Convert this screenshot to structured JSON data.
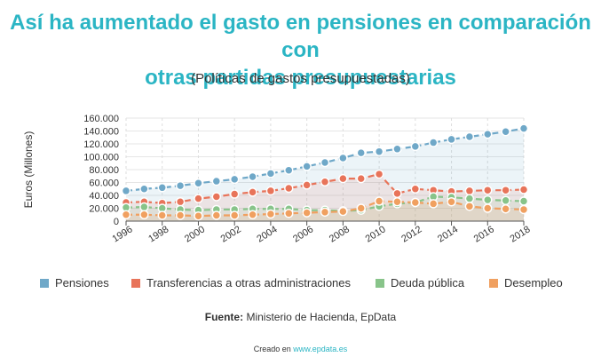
{
  "title_line1": "Así ha aumentado el gasto en pensiones en comparación con",
  "title_line2": "otras partidas presupuestarias",
  "subtitle": "(Políticas de gastos presupuestadas)",
  "source_label": "Fuente:",
  "source_text": "Ministerio de Hacienda, EpData",
  "credit_text": "Creado en",
  "credit_link": "www.epdata.es",
  "chart_data": {
    "type": "line",
    "title": "Así ha aumentado el gasto en pensiones en comparación con otras partidas presupuestarias",
    "subtitle": "(Políticas de gastos presupuestadas)",
    "xlabel": "",
    "ylabel": "Euros (Millones)",
    "ylim": [
      0,
      160000
    ],
    "yticks": [
      0,
      20000,
      40000,
      60000,
      80000,
      100000,
      120000,
      140000,
      160000
    ],
    "ytick_labels": [
      "0",
      "20.000",
      "40.000",
      "60.000",
      "80.000",
      "100.000",
      "120.000",
      "140.000",
      "160.000"
    ],
    "x": [
      1996,
      1997,
      1998,
      1999,
      2000,
      2001,
      2002,
      2003,
      2004,
      2005,
      2006,
      2007,
      2008,
      2009,
      2010,
      2011,
      2012,
      2013,
      2014,
      2015,
      2016,
      2017,
      2018
    ],
    "xtick_labels": [
      "1996",
      "1998",
      "2000",
      "2002",
      "2004",
      "2006",
      "2008",
      "2010",
      "2012",
      "2014",
      "2016",
      "2018"
    ],
    "legend_position": "bottom",
    "series": [
      {
        "name": "Pensiones",
        "color": "#6fa8c8",
        "values": [
          47000,
          50000,
          52000,
          55000,
          59000,
          62000,
          65000,
          69000,
          74000,
          79000,
          85000,
          91000,
          98000,
          106000,
          108000,
          112000,
          116000,
          122000,
          127000,
          131000,
          135000,
          139000,
          144000
        ]
      },
      {
        "name": "Transferencias a otras administraciones",
        "color": "#e8745a",
        "values": [
          29000,
          30000,
          28000,
          30000,
          35000,
          38000,
          42000,
          45000,
          47000,
          51000,
          56000,
          61000,
          66000,
          66000,
          73000,
          43000,
          50000,
          48000,
          46000,
          47000,
          48000,
          48000,
          49000
        ]
      },
      {
        "name": "Deuda pública",
        "color": "#88c48a",
        "values": [
          21000,
          22000,
          20000,
          18000,
          17000,
          18000,
          18000,
          19000,
          19000,
          19000,
          17000,
          17000,
          16000,
          17000,
          23000,
          27000,
          29000,
          38000,
          37000,
          35000,
          33000,
          32000,
          31000
        ]
      },
      {
        "name": "Desempleo",
        "color": "#f0a060",
        "values": [
          10000,
          10000,
          9000,
          9000,
          8000,
          9000,
          9000,
          10000,
          11000,
          12000,
          13000,
          14000,
          15000,
          20000,
          31000,
          30000,
          29000,
          27000,
          30000,
          23000,
          20000,
          19000,
          18000
        ]
      }
    ]
  }
}
